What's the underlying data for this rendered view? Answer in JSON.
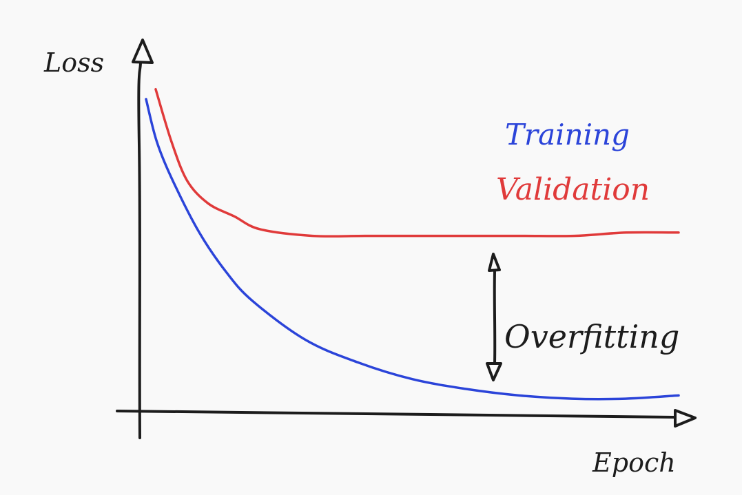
{
  "chart_data": {
    "type": "line",
    "title": "",
    "xlabel": "Epoch",
    "ylabel": "Loss",
    "grid": false,
    "ticks": false,
    "legend_position": "top-right",
    "series": [
      {
        "name": "Training",
        "color": "#2b44d9",
        "shape": "exponential decay to a low plateau",
        "x": [
          0,
          0.02,
          0.05,
          0.1,
          0.15,
          0.2,
          0.3,
          0.4,
          0.5,
          0.6,
          0.7,
          0.8,
          0.9,
          1.0
        ],
        "y": [
          0.96,
          0.83,
          0.71,
          0.55,
          0.43,
          0.34,
          0.22,
          0.15,
          0.1,
          0.07,
          0.05,
          0.04,
          0.04,
          0.05
        ]
      },
      {
        "name": "Validation",
        "color": "#e03a3a",
        "shape": "decay to a higher plateau",
        "x": [
          0,
          0.03,
          0.06,
          0.1,
          0.15,
          0.2,
          0.3,
          0.4,
          0.5,
          0.6,
          0.7,
          0.8,
          0.9,
          1.0
        ],
        "y": [
          0.99,
          0.83,
          0.71,
          0.64,
          0.6,
          0.56,
          0.54,
          0.54,
          0.54,
          0.54,
          0.54,
          0.54,
          0.55,
          0.55
        ]
      }
    ],
    "annotations": [
      {
        "text": "Overfitting",
        "kind": "double-headed arrow",
        "between": [
          "Validation",
          "Training"
        ],
        "x": 0.64
      }
    ]
  },
  "labels": {
    "y_axis": "Loss",
    "x_axis": "Epoch",
    "legend_training": "Training",
    "legend_validation": "Validation",
    "gap_label": "Overfitting"
  }
}
